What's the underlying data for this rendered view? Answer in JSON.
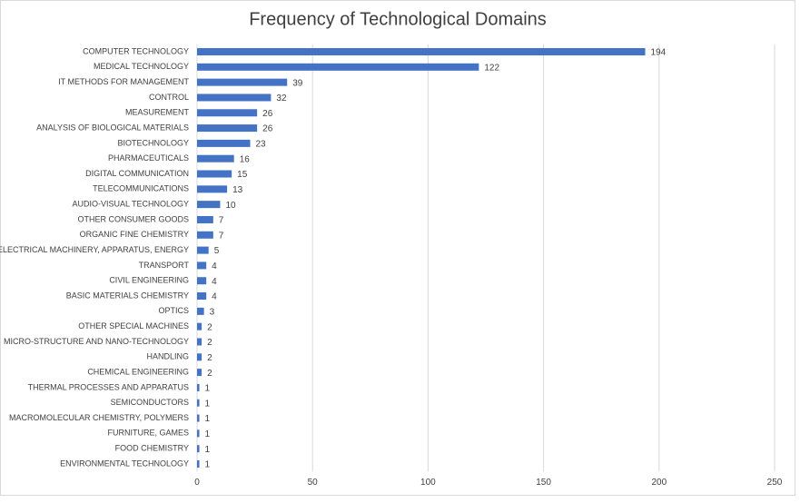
{
  "chart_data": {
    "type": "barh",
    "title": "Frequency of Technological Domains",
    "categories": [
      "COMPUTER TECHNOLOGY",
      "MEDICAL TECHNOLOGY",
      "IT METHODS FOR MANAGEMENT",
      "CONTROL",
      "MEASUREMENT",
      "ANALYSIS OF BIOLOGICAL MATERIALS",
      "BIOTECHNOLOGY",
      "PHARMACEUTICALS",
      "DIGITAL COMMUNICATION",
      "TELECOMMUNICATIONS",
      "AUDIO-VISUAL TECHNOLOGY",
      "OTHER CONSUMER GOODS",
      "ORGANIC FINE CHEMISTRY",
      "ELECTRICAL MACHINERY, APPARATUS, ENERGY",
      "TRANSPORT",
      "CIVIL ENGINEERING",
      "BASIC MATERIALS CHEMISTRY",
      "OPTICS",
      "OTHER SPECIAL MACHINES",
      "MICRO-STRUCTURE AND NANO-TECHNOLOGY",
      "HANDLING",
      "CHEMICAL ENGINEERING",
      "THERMAL PROCESSES AND APPARATUS",
      "SEMICONDUCTORS",
      "MACROMOLECULAR CHEMISTRY, POLYMERS",
      "FURNITURE, GAMES",
      "FOOD CHEMISTRY",
      "ENVIRONMENTAL TECHNOLOGY"
    ],
    "values": [
      194,
      122,
      39,
      32,
      26,
      26,
      23,
      16,
      15,
      13,
      10,
      7,
      7,
      5,
      4,
      4,
      4,
      3,
      2,
      2,
      2,
      2,
      1,
      1,
      1,
      1,
      1,
      1
    ],
    "color": "#4472c4",
    "xlim": [
      0,
      250
    ],
    "xticks": [
      0,
      50,
      100,
      150,
      200,
      250
    ],
    "grid": true
  }
}
